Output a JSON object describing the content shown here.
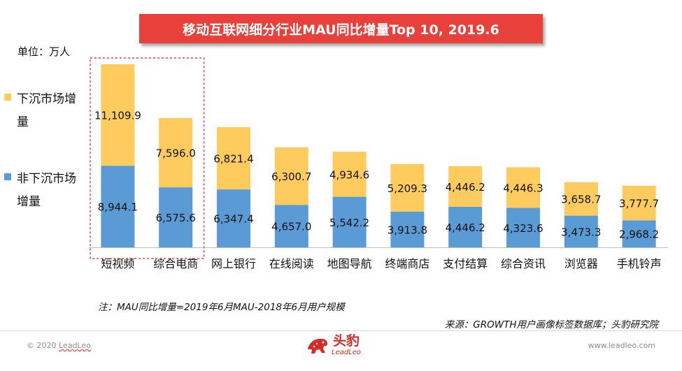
{
  "title": "移动互联网细分行业MAU同比增量Top 10, 2019.6",
  "unit_label": "单位：万人",
  "legend": [
    {
      "label": "下沉市场增量",
      "color": "#fecb5e"
    },
    {
      "label": "非下沉市场增量",
      "color": "#5b9bd5"
    }
  ],
  "chart_data": {
    "type": "bar",
    "stacked": true,
    "categories": [
      "短视频",
      "综合电商",
      "网上银行",
      "在线阅读",
      "地图导航",
      "终端商店",
      "支付结算",
      "综合资讯",
      "浏览器",
      "手机铃声"
    ],
    "series": [
      {
        "name": "非下沉市场增量",
        "color": "#5b9bd5",
        "values": [
          8944.1,
          6575.6,
          6347.4,
          4657.0,
          5542.2,
          3913.8,
          4446.2,
          4323.6,
          3473.3,
          2968.2
        ],
        "labels": [
          "8,944.1",
          "6,575.6",
          "6,347.4",
          "4,657.0",
          "5,542.2",
          "3,913.8",
          "4,446.2",
          "4,323.6",
          "3,473.3",
          "2,968.2"
        ]
      },
      {
        "name": "下沉市场增量",
        "color": "#fecb5e",
        "values": [
          11109.9,
          7596.0,
          6821.4,
          6300.7,
          4934.6,
          5209.3,
          4446.2,
          4446.3,
          3658.7,
          3777.7
        ],
        "labels": [
          "11,109.9",
          "7,596.0",
          "6,821.4",
          "6,300.7",
          "4,934.6",
          "5,209.3",
          "4,446.2",
          "4,446.3",
          "3,658.7",
          "3,777.7"
        ]
      }
    ],
    "ylim": [
      0,
      22000
    ],
    "highlight_categories": [
      "短视频",
      "综合电商"
    ],
    "highlight_color": "#e8413c"
  },
  "note": "注：MAU同比增量=2019年6月MAU-2018年6月用户规模",
  "source": "来源：GROWTH用户画像标签数据库；头豹研究院",
  "footer": {
    "copyright_prefix": "© 2020 ",
    "copyright_brand": "LeadLeo",
    "website": "www.leadleo.com",
    "logo_cn": "头豹",
    "logo_en": "LeadLeo"
  }
}
